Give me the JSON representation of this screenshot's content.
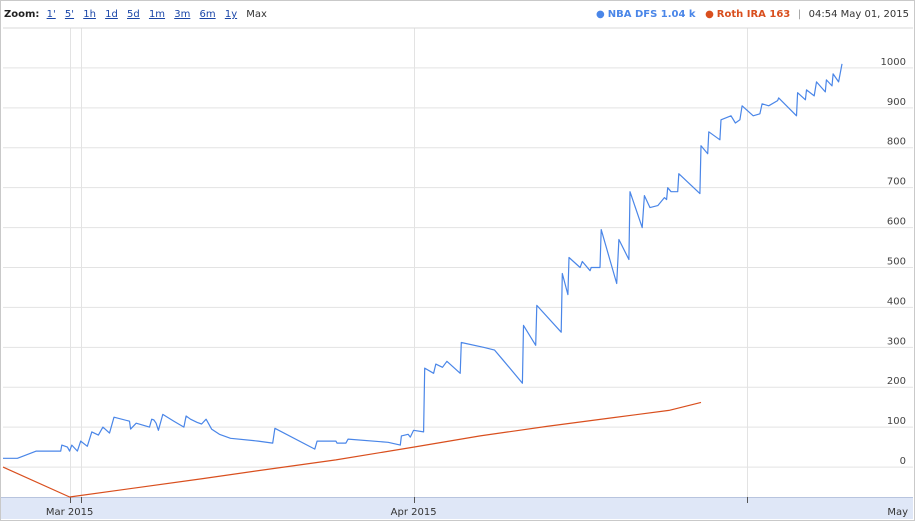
{
  "zoom": {
    "label": "Zoom:",
    "options": [
      "1'",
      "5'",
      "1h",
      "1d",
      "5d",
      "1m",
      "3m",
      "6m",
      "1y",
      "Max"
    ],
    "selected": "Max"
  },
  "legend": {
    "series1_label": "NBA DFS 1.04 k",
    "series2_label": "Roth IRA 163",
    "timestamp": "04:54 May 01, 2015"
  },
  "colors": {
    "series1": "#4a86e8",
    "series2": "#d94f1e",
    "grid": "#e3e3e3",
    "axis_bg": "#dfe7f7"
  },
  "chart_data": {
    "type": "line",
    "title": "",
    "xlabel": "",
    "ylabel": "",
    "x_ticks": [
      "Mar 2015",
      "Apr 2015",
      "May"
    ],
    "x_tick_days": [
      28,
      59,
      89
    ],
    "y_ticks": [
      0,
      100,
      200,
      300,
      400,
      500,
      600,
      700,
      800,
      900,
      1000
    ],
    "xlim": [
      22,
      104
    ],
    "ylim": [
      -75,
      1100
    ],
    "grid": true,
    "legend_position": "top-right",
    "series": [
      {
        "name": "NBA DFS",
        "color": "#4a86e8",
        "points": [
          [
            22.0,
            22
          ],
          [
            23.3,
            22
          ],
          [
            25.0,
            40
          ],
          [
            27.2,
            40
          ],
          [
            27.3,
            55
          ],
          [
            27.8,
            50
          ],
          [
            28.0,
            40
          ],
          [
            28.2,
            55
          ],
          [
            28.7,
            40
          ],
          [
            29.0,
            65
          ],
          [
            29.6,
            52
          ],
          [
            30.0,
            88
          ],
          [
            30.6,
            80
          ],
          [
            31.0,
            100
          ],
          [
            31.6,
            85
          ],
          [
            32.0,
            125
          ],
          [
            33.4,
            115
          ],
          [
            33.5,
            95
          ],
          [
            34.0,
            110
          ],
          [
            35.0,
            102
          ],
          [
            35.2,
            100
          ],
          [
            35.4,
            120
          ],
          [
            35.6,
            118
          ],
          [
            35.8,
            110
          ],
          [
            36.0,
            92
          ],
          [
            36.4,
            132
          ],
          [
            37.4,
            115
          ],
          [
            38.3,
            100
          ],
          [
            38.5,
            128
          ],
          [
            38.9,
            120
          ],
          [
            39.5,
            112
          ],
          [
            39.9,
            108
          ],
          [
            40.3,
            120
          ],
          [
            40.8,
            95
          ],
          [
            41.5,
            82
          ],
          [
            42.5,
            72
          ],
          [
            45.0,
            65
          ],
          [
            46.3,
            60
          ],
          [
            46.5,
            97
          ],
          [
            50.1,
            45
          ],
          [
            50.3,
            65
          ],
          [
            52.0,
            65
          ],
          [
            52.1,
            60
          ],
          [
            52.9,
            60
          ],
          [
            53.1,
            70
          ],
          [
            56.7,
            62
          ],
          [
            57.8,
            55
          ],
          [
            57.9,
            78
          ],
          [
            58.5,
            82
          ],
          [
            58.7,
            75
          ],
          [
            59.0,
            92
          ],
          [
            59.9,
            88
          ],
          [
            60.0,
            248
          ],
          [
            60.8,
            235
          ],
          [
            61.0,
            258
          ],
          [
            61.6,
            250
          ],
          [
            62.0,
            265
          ],
          [
            63.2,
            235
          ],
          [
            63.3,
            312
          ],
          [
            65.3,
            300
          ],
          [
            66.3,
            293
          ],
          [
            67.0,
            270
          ],
          [
            68.8,
            210
          ],
          [
            68.9,
            355
          ],
          [
            70.0,
            305
          ],
          [
            70.1,
            405
          ],
          [
            72.3,
            338
          ],
          [
            72.4,
            485
          ],
          [
            72.9,
            432
          ],
          [
            73.0,
            525
          ],
          [
            74.0,
            500
          ],
          [
            74.2,
            515
          ],
          [
            74.9,
            492
          ],
          [
            75.0,
            500
          ],
          [
            75.8,
            500
          ],
          [
            75.9,
            595
          ],
          [
            77.3,
            460
          ],
          [
            77.5,
            570
          ],
          [
            78.4,
            520
          ],
          [
            78.5,
            690
          ],
          [
            79.6,
            600
          ],
          [
            79.8,
            680
          ],
          [
            80.3,
            650
          ],
          [
            81.0,
            655
          ],
          [
            81.6,
            675
          ],
          [
            81.8,
            670
          ],
          [
            81.9,
            700
          ],
          [
            82.2,
            690
          ],
          [
            82.8,
            690
          ],
          [
            82.9,
            735
          ],
          [
            84.8,
            685
          ],
          [
            84.9,
            805
          ],
          [
            85.5,
            785
          ],
          [
            85.6,
            840
          ],
          [
            86.6,
            820
          ],
          [
            86.7,
            870
          ],
          [
            87.6,
            880
          ],
          [
            88.0,
            862
          ],
          [
            88.4,
            870
          ],
          [
            88.6,
            905
          ],
          [
            89.6,
            880
          ],
          [
            90.2,
            885
          ],
          [
            90.4,
            910
          ],
          [
            91.0,
            905
          ],
          [
            91.8,
            918
          ],
          [
            91.9,
            925
          ],
          [
            93.5,
            880
          ],
          [
            93.6,
            938
          ],
          [
            94.3,
            920
          ],
          [
            94.4,
            945
          ],
          [
            95.1,
            930
          ],
          [
            95.3,
            965
          ],
          [
            96.1,
            940
          ],
          [
            96.2,
            970
          ],
          [
            96.7,
            955
          ],
          [
            96.8,
            985
          ],
          [
            97.3,
            965
          ],
          [
            97.6,
            1010
          ]
        ]
      },
      {
        "name": "Roth IRA",
        "color": "#d94f1e",
        "points": [
          [
            22.0,
            0
          ],
          [
            28.0,
            -75
          ],
          [
            34.0,
            -52
          ],
          [
            40.0,
            -29
          ],
          [
            46.0,
            -5
          ],
          [
            52.0,
            18
          ],
          [
            59.0,
            50
          ],
          [
            65.0,
            78
          ],
          [
            71.0,
            102
          ],
          [
            77.0,
            124
          ],
          [
            82.0,
            142
          ],
          [
            84.9,
            162
          ]
        ]
      }
    ]
  }
}
